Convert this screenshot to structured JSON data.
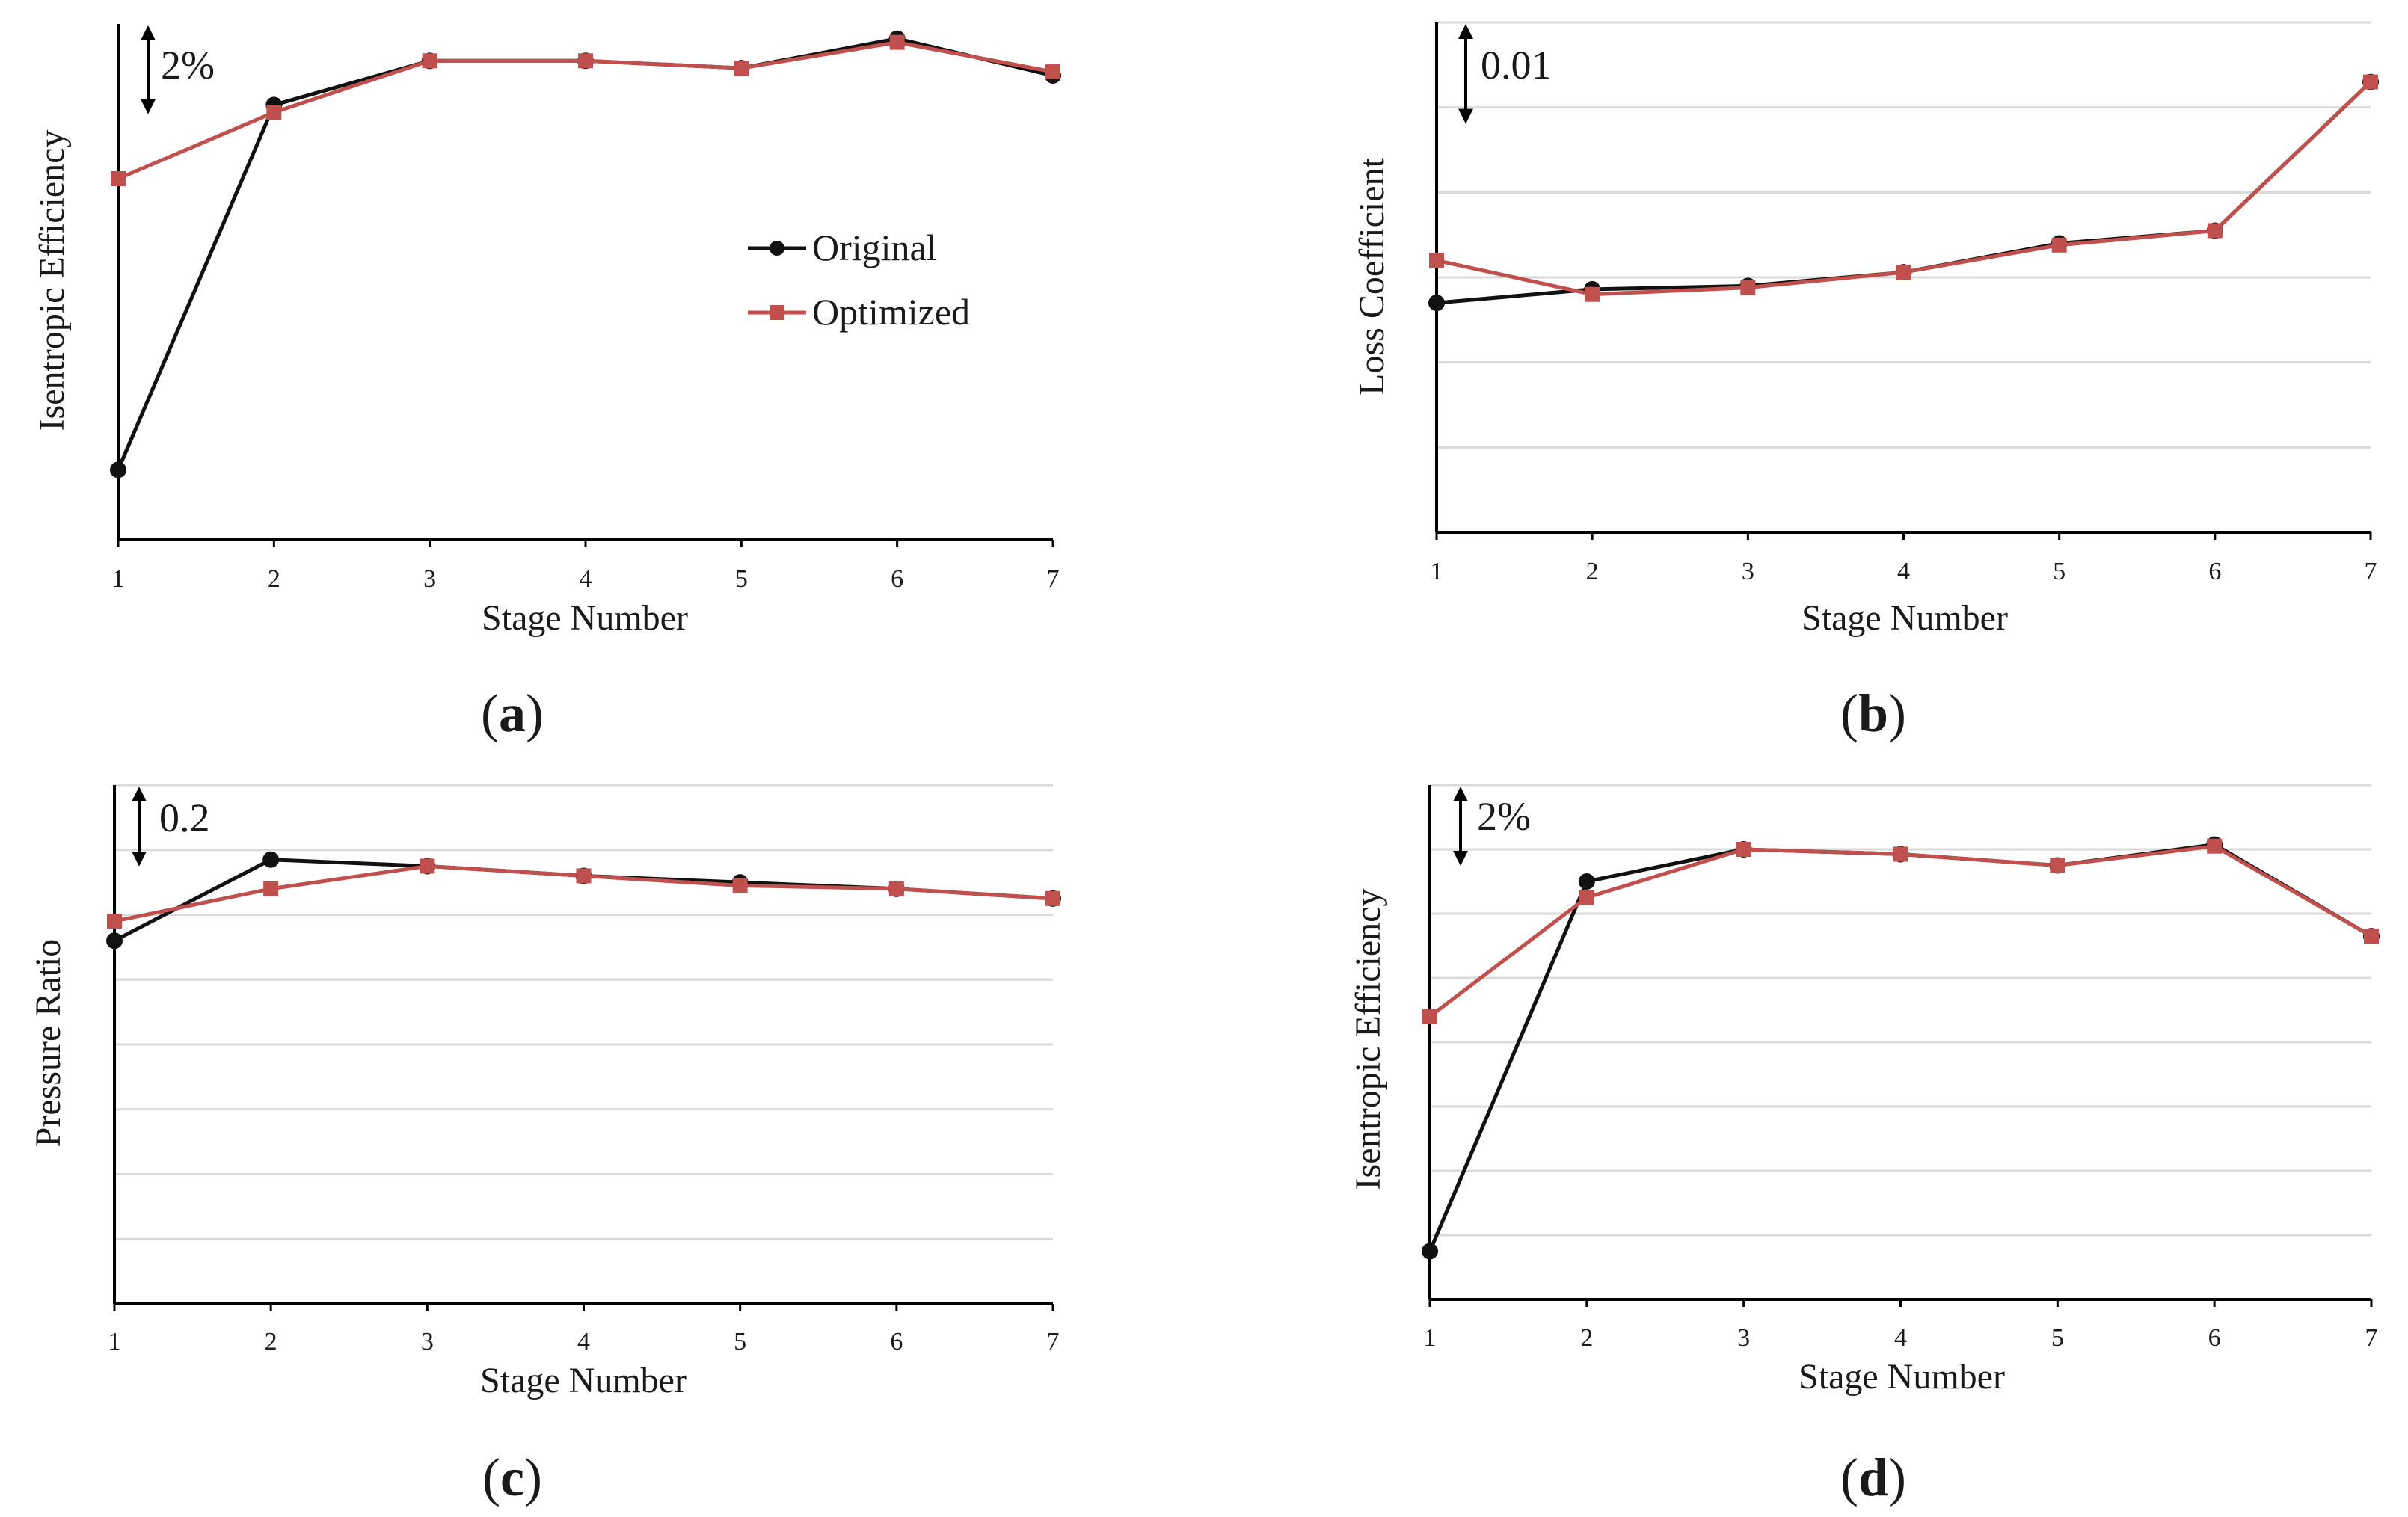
{
  "colors": {
    "original": "#111111",
    "optimized": "#c0504d",
    "grid": "#d9d9d9",
    "axis": "#000000"
  },
  "legend": {
    "original": "Original",
    "optimized": "Optimized"
  },
  "chart_data": [
    {
      "id": "a",
      "type": "line",
      "caption": {
        "open": "(",
        "letter": "a",
        "close": ")"
      },
      "xlabel": "Stage Number",
      "ylabel": "Isentropic Efficiency",
      "scale_label": "2%",
      "scale_value": 2,
      "categories": [
        "1",
        "2",
        "3",
        "4",
        "5",
        "6",
        "7"
      ],
      "ylim": [
        -11.5,
        2.5
      ],
      "grid": false,
      "legend_position": "center-right",
      "series": [
        {
          "name": "Original",
          "values": [
            -9.6,
            0.3,
            1.5,
            1.5,
            1.3,
            2.1,
            1.1
          ]
        },
        {
          "name": "Optimized",
          "values": [
            -1.7,
            0.1,
            1.5,
            1.5,
            1.3,
            2.0,
            1.2
          ]
        }
      ]
    },
    {
      "id": "b",
      "type": "line",
      "caption": {
        "open": "(",
        "letter": "b",
        "close": ")"
      },
      "xlabel": "Stage Number",
      "ylabel": "Loss Coefficient",
      "scale_label": "0.01",
      "scale_value": 0.01,
      "categories": [
        "1",
        "2",
        "3",
        "4",
        "5",
        "6",
        "7"
      ],
      "ylim": [
        0,
        0.06
      ],
      "grid": true,
      "grid_step": 0.01,
      "series": [
        {
          "name": "Original",
          "values": [
            0.027,
            0.0286,
            0.029,
            0.0306,
            0.034,
            0.0355,
            0.053
          ]
        },
        {
          "name": "Optimized",
          "values": [
            0.032,
            0.028,
            0.0288,
            0.0306,
            0.0338,
            0.0355,
            0.053
          ]
        }
      ]
    },
    {
      "id": "c",
      "type": "line",
      "caption": {
        "open": "(",
        "letter": "c",
        "close": ")"
      },
      "xlabel": "Stage Number",
      "ylabel": "Pressure Ratio",
      "scale_label": "0.2",
      "scale_value": 0.2,
      "categories": [
        "1",
        "2",
        "3",
        "4",
        "5",
        "6",
        "7"
      ],
      "ylim": [
        0,
        1.6
      ],
      "grid": true,
      "grid_step": 0.2,
      "series": [
        {
          "name": "Original",
          "values": [
            1.12,
            1.37,
            1.35,
            1.32,
            1.3,
            1.28,
            1.25
          ]
        },
        {
          "name": "Optimized",
          "values": [
            1.18,
            1.28,
            1.35,
            1.32,
            1.29,
            1.28,
            1.25
          ]
        }
      ]
    },
    {
      "id": "d",
      "type": "line",
      "caption": {
        "open": "(",
        "letter": "d",
        "close": ")"
      },
      "xlabel": "Stage Number",
      "ylabel": "Isentropic Efficiency",
      "scale_label": "2%",
      "scale_value": 2,
      "categories": [
        "1",
        "2",
        "3",
        "4",
        "5",
        "6",
        "7"
      ],
      "ylim": [
        -14,
        2
      ],
      "grid": true,
      "grid_step": 2,
      "series": [
        {
          "name": "Original",
          "values": [
            -12.5,
            -1.0,
            0.0,
            -0.15,
            -0.5,
            0.15,
            -2.7
          ]
        },
        {
          "name": "Optimized",
          "values": [
            -5.2,
            -1.5,
            0.0,
            -0.15,
            -0.5,
            0.1,
            -2.7
          ]
        }
      ]
    }
  ]
}
